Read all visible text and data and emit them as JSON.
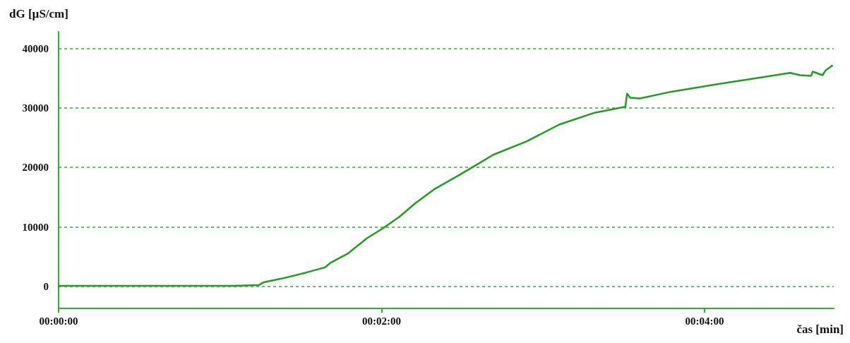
{
  "chart_data": {
    "type": "line",
    "xlabel": "čas [min]",
    "ylabel": "dG [µS/cm]",
    "x": [
      0,
      1.08,
      1.24,
      1.27,
      1.38,
      1.53,
      1.65,
      1.68,
      1.79,
      1.91,
      2.01,
      2.11,
      2.21,
      2.33,
      2.48,
      2.58,
      2.69,
      2.9,
      3.1,
      3.32,
      3.51,
      3.52,
      3.54,
      3.6,
      3.79,
      4.08,
      4.37,
      4.53,
      4.59,
      4.66,
      4.67,
      4.73,
      4.75,
      4.79
    ],
    "series": [
      {
        "color": "#1ea01e",
        "values": [
          100,
          100,
          200,
          700,
          1300,
          2300,
          3200,
          3900,
          5500,
          8100,
          9800,
          11700,
          14000,
          16400,
          18700,
          20300,
          22100,
          24400,
          27200,
          29200,
          30200,
          32400,
          31700,
          31600,
          32700,
          34000,
          35200,
          35900,
          35500,
          35400,
          36100,
          35500,
          36300,
          37100
        ]
      }
    ],
    "xlim": [
      0,
      4.8
    ],
    "xticks": [
      {
        "value": 0,
        "label": "00:00:00"
      },
      {
        "value": 2,
        "label": "00:02:00"
      },
      {
        "value": 4,
        "label": "00:04:00"
      }
    ],
    "ylim": [
      -3700,
      42800
    ],
    "yticks": [
      0,
      10000,
      20000,
      30000,
      40000
    ],
    "grid": "y",
    "marker": "none",
    "line_style": "solid"
  }
}
